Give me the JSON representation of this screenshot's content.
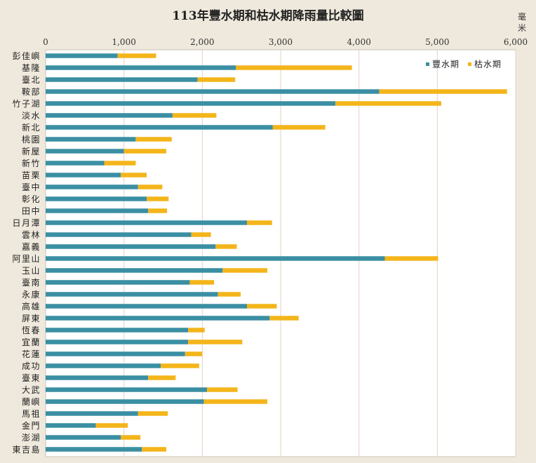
{
  "chart_data": {
    "type": "bar",
    "orientation": "horizontal",
    "stacked": true,
    "title": "113年豐水期和枯水期降雨量比較圖",
    "unit": "毫米",
    "xlim": [
      0,
      6000
    ],
    "x_ticks": [
      "0",
      "1,000",
      "2,000",
      "3,000",
      "4,000",
      "5,000",
      "6,000"
    ],
    "grid": true,
    "legend_position": "top-right",
    "categories": [
      "彭佳嶼",
      "基隆",
      "臺北",
      "鞍部",
      "竹子湖",
      "淡水",
      "新北",
      "桃園",
      "新屋",
      "新竹",
      "苗栗",
      "臺中",
      "彰化",
      "田中",
      "日月潭",
      "雲林",
      "嘉義",
      "阿里山",
      "玉山",
      "臺南",
      "永康",
      "高雄",
      "屏東",
      "恆春",
      "宜蘭",
      "花蓮",
      "成功",
      "臺東",
      "大武",
      "蘭嶼",
      "馬祖",
      "金門",
      "澎湖",
      "東吉島"
    ],
    "series": [
      {
        "name": "豐水期",
        "color": "#3a8fa2",
        "values": [
          920,
          2430,
          1940,
          4260,
          3700,
          1620,
          2900,
          1150,
          1000,
          750,
          960,
          1180,
          1290,
          1310,
          2570,
          1860,
          2170,
          4330,
          2260,
          1840,
          2200,
          2570,
          2860,
          1820,
          1820,
          1780,
          1470,
          1310,
          2060,
          2020,
          1180,
          640,
          960,
          1230
        ]
      },
      {
        "name": "枯水期",
        "color": "#f3b51a",
        "values": [
          490,
          1480,
          480,
          1630,
          1350,
          560,
          670,
          460,
          540,
          400,
          330,
          310,
          280,
          240,
          320,
          250,
          270,
          680,
          570,
          310,
          290,
          380,
          370,
          210,
          690,
          220,
          490,
          350,
          390,
          810,
          380,
          410,
          250,
          310
        ]
      }
    ]
  }
}
